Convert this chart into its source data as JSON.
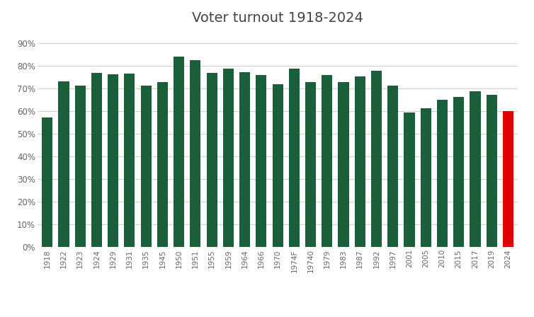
{
  "years": [
    "1918",
    "1922",
    "1923",
    "1924",
    "1929",
    "1931",
    "1935",
    "1945",
    "1950",
    "1951",
    "1955",
    "1959",
    "1964",
    "1966",
    "1970",
    "1974F",
    "19740",
    "1979",
    "1983",
    "1987",
    "1992",
    "1997",
    "2001",
    "2005",
    "2010",
    "2015",
    "2017",
    "2019",
    "2024"
  ],
  "values": [
    57.2,
    73.0,
    71.1,
    76.9,
    76.3,
    76.4,
    71.1,
    72.7,
    84.0,
    82.5,
    76.7,
    78.8,
    77.1,
    75.9,
    72.0,
    78.8,
    72.7,
    75.9,
    72.7,
    75.4,
    77.7,
    71.3,
    59.4,
    61.4,
    65.1,
    66.1,
    68.8,
    67.3,
    60.0
  ],
  "colors": [
    "#1a5e3a",
    "#1a5e3a",
    "#1a5e3a",
    "#1a5e3a",
    "#1a5e3a",
    "#1a5e3a",
    "#1a5e3a",
    "#1a5e3a",
    "#1a5e3a",
    "#1a5e3a",
    "#1a5e3a",
    "#1a5e3a",
    "#1a5e3a",
    "#1a5e3a",
    "#1a5e3a",
    "#1a5e3a",
    "#1a5e3a",
    "#1a5e3a",
    "#1a5e3a",
    "#1a5e3a",
    "#1a5e3a",
    "#1a5e3a",
    "#1a5e3a",
    "#1a5e3a",
    "#1a5e3a",
    "#1a5e3a",
    "#1a5e3a",
    "#1a5e3a",
    "#e00000"
  ],
  "title": "Voter turnout 1918-2024",
  "title_fontsize": 14,
  "title_fontweight": "normal",
  "title_color": "#444444",
  "ylim": [
    0,
    95
  ],
  "yticks": [
    0,
    10,
    20,
    30,
    40,
    50,
    60,
    70,
    80,
    90
  ],
  "ytick_labels": [
    "0%",
    "10%",
    "20%",
    "30%",
    "40%",
    "50%",
    "60%",
    "70%",
    "80%",
    "90%"
  ],
  "grid_color": "#d0d0d0",
  "background_color": "#ffffff",
  "bar_width": 0.65,
  "tick_fontsize": 7.5,
  "ytick_fontsize": 8.5
}
